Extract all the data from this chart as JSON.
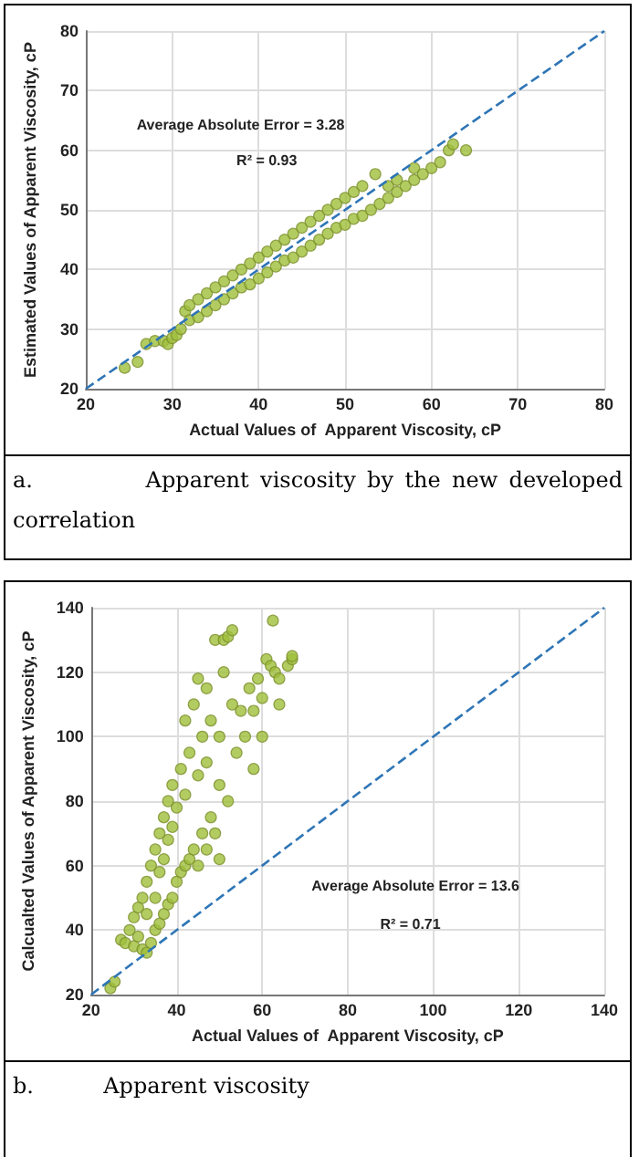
{
  "chart_data": [
    {
      "type": "scatter",
      "xlabel": "Actual Values of  Apparent Viscosity, cP",
      "ylabel": "Estimated Values of Apparent Viscosity, cP",
      "annotations": [
        "Average Absolute Error = 3.28",
        "R² = 0.93",
        "a.          Apparent viscosity by the new developed correlation"
      ],
      "xlim": [
        20,
        80
      ],
      "ylim": [
        20,
        80
      ],
      "xticks": [
        20,
        30,
        40,
        50,
        60,
        70,
        80
      ],
      "yticks": [
        20,
        30,
        40,
        50,
        60,
        70,
        80
      ],
      "grid": true,
      "marker": "circle",
      "series": [
        {
          "color": "#9fbf3b",
          "x": [
            24.5,
            26,
            27,
            28,
            29,
            29.5,
            30,
            30.5,
            31,
            31.5,
            32,
            32,
            33,
            33,
            34,
            34,
            35,
            35,
            36,
            36,
            37,
            37,
            38,
            38,
            39,
            39,
            40,
            40,
            41,
            41,
            42,
            42,
            43,
            43,
            44,
            44,
            45,
            45,
            46,
            46,
            47,
            47,
            48,
            48,
            49,
            49,
            50,
            50,
            51,
            51,
            52,
            52,
            53,
            53.5,
            54,
            55,
            55,
            56,
            56,
            57,
            58,
            58,
            59,
            60,
            61,
            62,
            62.5,
            64
          ],
          "values": [
            23.5,
            24.5,
            27.5,
            28,
            28,
            27.5,
            28.5,
            29,
            30,
            33,
            31.5,
            34,
            32,
            35,
            33,
            36,
            34,
            37,
            35,
            38,
            36,
            39,
            37,
            40,
            37.5,
            41,
            38.5,
            42,
            39.5,
            43,
            40.5,
            44,
            41.5,
            45,
            42,
            46,
            43,
            47,
            44,
            48,
            45,
            49,
            46,
            50,
            47,
            51,
            47.5,
            52,
            48.5,
            53,
            49,
            54,
            50,
            56,
            51,
            52,
            54,
            53,
            55,
            54,
            55,
            57,
            56,
            57,
            58,
            60,
            61,
            60
          ]
        },
        {
          "type": "line",
          "color": "#2e75b6",
          "line_style": "dashed",
          "marker": "none",
          "x": [
            20,
            80
          ],
          "values": [
            20,
            80
          ]
        }
      ]
    },
    {
      "type": "scatter",
      "xlabel": "Actual Values of  Apparent Viscosity, cP",
      "ylabel": "Calcualted Values of Apparent Viscosity, cP",
      "annotations": [
        "Average Absolute Error = 13.6",
        "R² = 0.71",
        "b.          Apparent viscosity"
      ],
      "xlim": [
        20,
        140
      ],
      "ylim": [
        20,
        140
      ],
      "xticks": [
        20,
        40,
        60,
        80,
        100,
        120,
        140
      ],
      "yticks": [
        20,
        40,
        60,
        80,
        100,
        120,
        140
      ],
      "grid": true,
      "marker": "circle",
      "series": [
        {
          "color": "#9fbf3b",
          "x": [
            24.5,
            25.5,
            27,
            28,
            29,
            30,
            30,
            31,
            31,
            32,
            32,
            33,
            33,
            33,
            34,
            34,
            35,
            35,
            35,
            36,
            36,
            36,
            37,
            37,
            37,
            38,
            38,
            38,
            39,
            39,
            39,
            40,
            40,
            41,
            41,
            42,
            42,
            42,
            43,
            43,
            44,
            44,
            45,
            45,
            45,
            46,
            46,
            47,
            47,
            47,
            48,
            48,
            49,
            49,
            50,
            50,
            50,
            51,
            51,
            52,
            52,
            53,
            53,
            54,
            55,
            56,
            57,
            58,
            58,
            59,
            60,
            60,
            61,
            62,
            62.5,
            63,
            64,
            64,
            66,
            67,
            67
          ],
          "values": [
            22,
            24,
            37,
            36,
            40,
            35,
            44,
            38,
            47,
            34,
            50,
            33,
            45,
            55,
            36,
            60,
            40,
            50,
            65,
            42,
            58,
            70,
            45,
            62,
            75,
            48,
            68,
            80,
            50,
            72,
            85,
            55,
            78,
            58,
            90,
            60,
            82,
            105,
            62,
            95,
            65,
            110,
            60,
            88,
            118,
            70,
            100,
            65,
            92,
            115,
            75,
            105,
            70,
            130,
            62,
            85,
            100,
            120,
            130,
            80,
            131,
            110,
            133,
            95,
            108,
            100,
            115,
            90,
            108,
            118,
            100,
            112,
            124,
            122,
            136,
            120,
            110,
            118,
            122,
            124,
            125
          ]
        },
        {
          "type": "line",
          "color": "#2e75b6",
          "line_style": "dashed",
          "marker": "none",
          "x": [
            20,
            140
          ],
          "values": [
            20,
            140
          ]
        }
      ]
    }
  ]
}
